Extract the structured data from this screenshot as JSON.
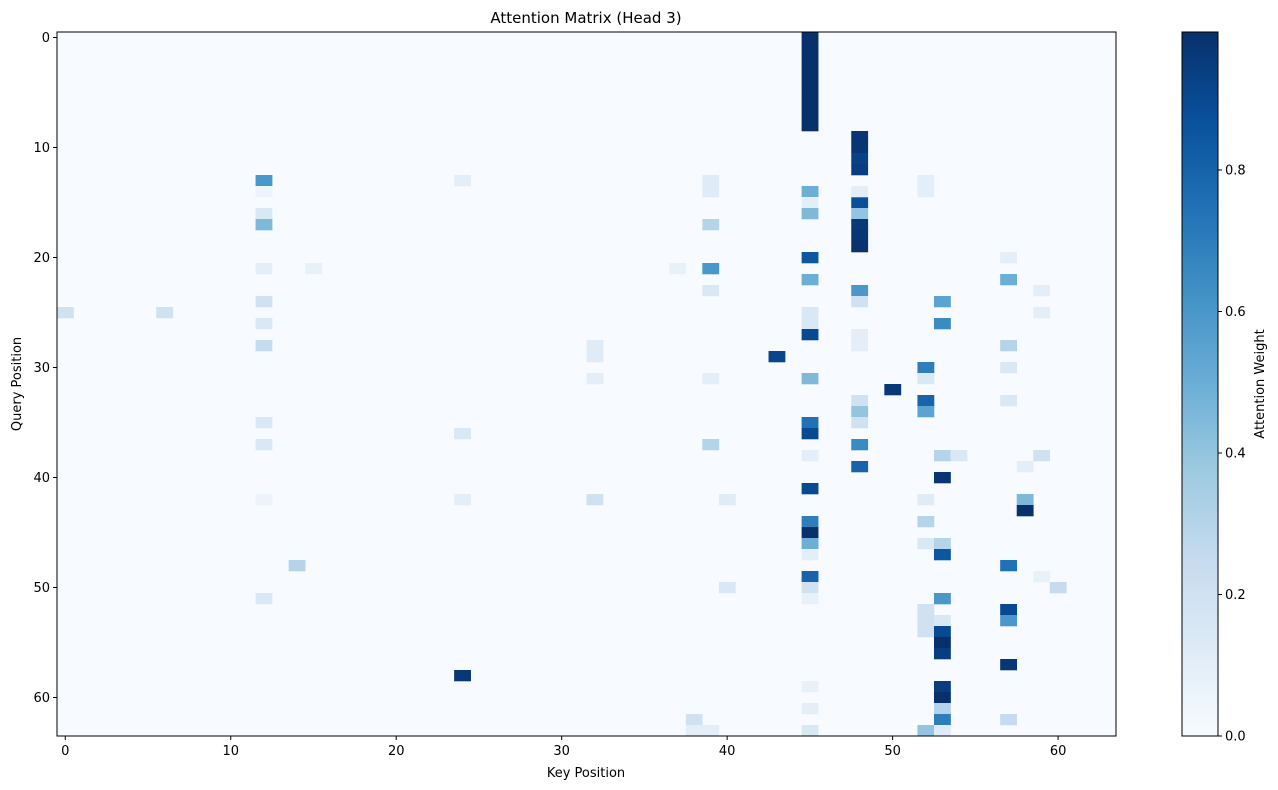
{
  "chart_data": {
    "type": "heatmap",
    "title": "Attention Matrix (Head 3)",
    "xlabel": "Key Position",
    "ylabel": "Query Position",
    "colorbar_label": "Attention Weight",
    "colormap": "Blues",
    "rows": 64,
    "cols": 64,
    "value_range": [
      0.0,
      1.0
    ],
    "xticks": [
      0,
      10,
      20,
      30,
      40,
      50,
      60
    ],
    "yticks": [
      0,
      10,
      20,
      30,
      40,
      50,
      60
    ],
    "colorbar_ticks": [
      0.0,
      0.2,
      0.4,
      0.6,
      0.8
    ],
    "background_value": 0.0,
    "cells": [
      {
        "row": 0,
        "col": 45,
        "value": 1.0
      },
      {
        "row": 1,
        "col": 45,
        "value": 1.0
      },
      {
        "row": 2,
        "col": 45,
        "value": 1.0
      },
      {
        "row": 3,
        "col": 45,
        "value": 1.0
      },
      {
        "row": 4,
        "col": 45,
        "value": 1.0
      },
      {
        "row": 5,
        "col": 45,
        "value": 1.0
      },
      {
        "row": 6,
        "col": 45,
        "value": 1.0
      },
      {
        "row": 7,
        "col": 45,
        "value": 1.0
      },
      {
        "row": 8,
        "col": 45,
        "value": 1.0
      },
      {
        "row": 9,
        "col": 48,
        "value": 0.98
      },
      {
        "row": 10,
        "col": 48,
        "value": 0.98
      },
      {
        "row": 11,
        "col": 48,
        "value": 0.93
      },
      {
        "row": 12,
        "col": 48,
        "value": 0.95
      },
      {
        "row": 15,
        "col": 48,
        "value": 0.88
      },
      {
        "row": 16,
        "col": 48,
        "value": 0.4
      },
      {
        "row": 17,
        "col": 48,
        "value": 0.97
      },
      {
        "row": 18,
        "col": 48,
        "value": 0.98
      },
      {
        "row": 19,
        "col": 48,
        "value": 0.99
      },
      {
        "row": 13,
        "col": 12,
        "value": 0.6
      },
      {
        "row": 14,
        "col": 12,
        "value": 0.05
      },
      {
        "row": 16,
        "col": 12,
        "value": 0.15
      },
      {
        "row": 17,
        "col": 12,
        "value": 0.45
      },
      {
        "row": 21,
        "col": 12,
        "value": 0.1
      },
      {
        "row": 24,
        "col": 12,
        "value": 0.2
      },
      {
        "row": 26,
        "col": 12,
        "value": 0.15
      },
      {
        "row": 28,
        "col": 12,
        "value": 0.25
      },
      {
        "row": 35,
        "col": 12,
        "value": 0.15
      },
      {
        "row": 37,
        "col": 12,
        "value": 0.15
      },
      {
        "row": 42,
        "col": 12,
        "value": 0.06
      },
      {
        "row": 51,
        "col": 12,
        "value": 0.15
      },
      {
        "row": 13,
        "col": 39,
        "value": 0.12
      },
      {
        "row": 14,
        "col": 39,
        "value": 0.12
      },
      {
        "row": 17,
        "col": 39,
        "value": 0.3
      },
      {
        "row": 21,
        "col": 39,
        "value": 0.6
      },
      {
        "row": 23,
        "col": 39,
        "value": 0.15
      },
      {
        "row": 31,
        "col": 39,
        "value": 0.1
      },
      {
        "row": 37,
        "col": 39,
        "value": 0.3
      },
      {
        "row": 63,
        "col": 39,
        "value": 0.1
      },
      {
        "row": 14,
        "col": 45,
        "value": 0.5
      },
      {
        "row": 15,
        "col": 45,
        "value": 0.1
      },
      {
        "row": 16,
        "col": 45,
        "value": 0.45
      },
      {
        "row": 20,
        "col": 45,
        "value": 0.85
      },
      {
        "row": 22,
        "col": 45,
        "value": 0.5
      },
      {
        "row": 25,
        "col": 45,
        "value": 0.15
      },
      {
        "row": 26,
        "col": 45,
        "value": 0.15
      },
      {
        "row": 27,
        "col": 45,
        "value": 0.9
      },
      {
        "row": 31,
        "col": 45,
        "value": 0.45
      },
      {
        "row": 35,
        "col": 45,
        "value": 0.75
      },
      {
        "row": 36,
        "col": 45,
        "value": 0.9
      },
      {
        "row": 38,
        "col": 45,
        "value": 0.1
      },
      {
        "row": 41,
        "col": 45,
        "value": 0.9
      },
      {
        "row": 44,
        "col": 45,
        "value": 0.7
      },
      {
        "row": 45,
        "col": 45,
        "value": 1.0
      },
      {
        "row": 46,
        "col": 45,
        "value": 0.5
      },
      {
        "row": 47,
        "col": 45,
        "value": 0.1
      },
      {
        "row": 49,
        "col": 45,
        "value": 0.8
      },
      {
        "row": 50,
        "col": 45,
        "value": 0.2
      },
      {
        "row": 51,
        "col": 45,
        "value": 0.08
      },
      {
        "row": 59,
        "col": 45,
        "value": 0.08
      },
      {
        "row": 61,
        "col": 45,
        "value": 0.1
      },
      {
        "row": 63,
        "col": 45,
        "value": 0.15
      },
      {
        "row": 14,
        "col": 48,
        "value": 0.1
      },
      {
        "row": 23,
        "col": 48,
        "value": 0.6
      },
      {
        "row": 24,
        "col": 48,
        "value": 0.2
      },
      {
        "row": 27,
        "col": 48,
        "value": 0.1
      },
      {
        "row": 28,
        "col": 48,
        "value": 0.1
      },
      {
        "row": 33,
        "col": 48,
        "value": 0.2
      },
      {
        "row": 34,
        "col": 48,
        "value": 0.4
      },
      {
        "row": 35,
        "col": 48,
        "value": 0.2
      },
      {
        "row": 37,
        "col": 48,
        "value": 0.65
      },
      {
        "row": 39,
        "col": 48,
        "value": 0.8
      },
      {
        "row": 29,
        "col": 43,
        "value": 0.92
      },
      {
        "row": 32,
        "col": 50,
        "value": 0.97
      },
      {
        "row": 25,
        "col": 0,
        "value": 0.2
      },
      {
        "row": 25,
        "col": 6,
        "value": 0.2
      },
      {
        "row": 48,
        "col": 14,
        "value": 0.3
      },
      {
        "row": 58,
        "col": 24,
        "value": 0.97
      },
      {
        "row": 36,
        "col": 24,
        "value": 0.15
      },
      {
        "row": 42,
        "col": 24,
        "value": 0.1
      },
      {
        "row": 28,
        "col": 32,
        "value": 0.12
      },
      {
        "row": 29,
        "col": 32,
        "value": 0.12
      },
      {
        "row": 31,
        "col": 32,
        "value": 0.1
      },
      {
        "row": 42,
        "col": 32,
        "value": 0.2
      },
      {
        "row": 42,
        "col": 40,
        "value": 0.12
      },
      {
        "row": 50,
        "col": 40,
        "value": 0.15
      },
      {
        "row": 62,
        "col": 38,
        "value": 0.2
      },
      {
        "row": 63,
        "col": 38,
        "value": 0.1
      },
      {
        "row": 13,
        "col": 52,
        "value": 0.1
      },
      {
        "row": 14,
        "col": 52,
        "value": 0.1
      },
      {
        "row": 30,
        "col": 52,
        "value": 0.7
      },
      {
        "row": 31,
        "col": 52,
        "value": 0.15
      },
      {
        "row": 33,
        "col": 52,
        "value": 0.8
      },
      {
        "row": 34,
        "col": 52,
        "value": 0.55
      },
      {
        "row": 42,
        "col": 52,
        "value": 0.12
      },
      {
        "row": 44,
        "col": 52,
        "value": 0.3
      },
      {
        "row": 46,
        "col": 52,
        "value": 0.15
      },
      {
        "row": 52,
        "col": 52,
        "value": 0.2
      },
      {
        "row": 53,
        "col": 52,
        "value": 0.2
      },
      {
        "row": 54,
        "col": 52,
        "value": 0.2
      },
      {
        "row": 63,
        "col": 52,
        "value": 0.4
      },
      {
        "row": 24,
        "col": 53,
        "value": 0.55
      },
      {
        "row": 26,
        "col": 53,
        "value": 0.65
      },
      {
        "row": 38,
        "col": 53,
        "value": 0.3
      },
      {
        "row": 40,
        "col": 53,
        "value": 0.98
      },
      {
        "row": 46,
        "col": 53,
        "value": 0.3
      },
      {
        "row": 47,
        "col": 53,
        "value": 0.85
      },
      {
        "row": 51,
        "col": 53,
        "value": 0.6
      },
      {
        "row": 53,
        "col": 53,
        "value": 0.15
      },
      {
        "row": 54,
        "col": 53,
        "value": 0.9
      },
      {
        "row": 55,
        "col": 53,
        "value": 1.0
      },
      {
        "row": 56,
        "col": 53,
        "value": 0.95
      },
      {
        "row": 59,
        "col": 53,
        "value": 0.95
      },
      {
        "row": 60,
        "col": 53,
        "value": 1.0
      },
      {
        "row": 61,
        "col": 53,
        "value": 0.3
      },
      {
        "row": 62,
        "col": 53,
        "value": 0.7
      },
      {
        "row": 63,
        "col": 53,
        "value": 0.12
      },
      {
        "row": 38,
        "col": 54,
        "value": 0.15
      },
      {
        "row": 20,
        "col": 57,
        "value": 0.1
      },
      {
        "row": 22,
        "col": 57,
        "value": 0.5
      },
      {
        "row": 28,
        "col": 57,
        "value": 0.3
      },
      {
        "row": 30,
        "col": 57,
        "value": 0.15
      },
      {
        "row": 33,
        "col": 57,
        "value": 0.15
      },
      {
        "row": 48,
        "col": 57,
        "value": 0.75
      },
      {
        "row": 52,
        "col": 57,
        "value": 0.9
      },
      {
        "row": 53,
        "col": 57,
        "value": 0.6
      },
      {
        "row": 57,
        "col": 57,
        "value": 0.98
      },
      {
        "row": 62,
        "col": 57,
        "value": 0.25
      },
      {
        "row": 39,
        "col": 58,
        "value": 0.1
      },
      {
        "row": 42,
        "col": 58,
        "value": 0.45
      },
      {
        "row": 43,
        "col": 58,
        "value": 1.0
      },
      {
        "row": 38,
        "col": 59,
        "value": 0.2
      },
      {
        "row": 49,
        "col": 59,
        "value": 0.08
      },
      {
        "row": 25,
        "col": 59,
        "value": 0.1
      },
      {
        "row": 50,
        "col": 60,
        "value": 0.25
      },
      {
        "row": 23,
        "col": 59,
        "value": 0.1
      },
      {
        "row": 13,
        "col": 24,
        "value": 0.1
      },
      {
        "row": 21,
        "col": 15,
        "value": 0.08
      },
      {
        "row": 21,
        "col": 37,
        "value": 0.08
      }
    ]
  }
}
